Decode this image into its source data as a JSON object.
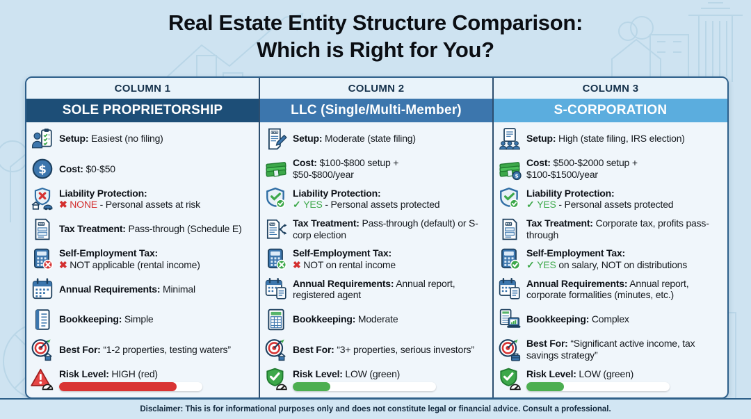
{
  "title": {
    "line1": "Real Estate Entity Structure Comparison:",
    "line2": "Which is Right for You?"
  },
  "footer": {
    "disclaimer": "Disclaimer: This is for informational purposes only and does not constitute legal or financial advice. Consult a professional."
  },
  "colors": {
    "page_background": "#cee3f1",
    "card_background": "#f0f6fb",
    "card_border": "#2e5f8a",
    "column1_header": "#1d4e77",
    "column2_header": "#3c76ad",
    "column3_header": "#5badde",
    "negative_red": "#d32f2f",
    "positive_green": "#3da84a",
    "risk_bar_red": "#d93434",
    "risk_bar_green": "#4cae50"
  },
  "table": {
    "columns": [
      {
        "header": "COLUMN 1",
        "title": "SOLE PROPRIETORSHIP",
        "header_color": "#1d4e77",
        "rows": [
          {
            "name": "setup",
            "icon": "person-checklist",
            "segments": [
              {
                "t": "Setup:",
                "b": 1
              },
              {
                "t": " Easiest (no filing)"
              }
            ]
          },
          {
            "name": "cost",
            "icon": "dollar-circle",
            "segments": [
              {
                "t": "Cost:",
                "b": 1
              },
              {
                "t": " $0-$50"
              }
            ]
          },
          {
            "name": "liability-protection",
            "icon": "shield-x-assets",
            "segments": [
              {
                "t": "Liability Protection:",
                "b": 1
              },
              {
                "br": 1
              },
              {
                "t": "✖ ",
                "b": 1,
                "c": "#d32f2f"
              },
              {
                "t": "NONE",
                "c": "#d32f2f"
              },
              {
                "t": " - Personal assets at risk"
              }
            ]
          },
          {
            "name": "tax-treatment",
            "icon": "tax-doc",
            "segments": [
              {
                "t": "Tax Treatment:",
                "b": 1
              },
              {
                "t": " Pass-through (Schedule E)"
              }
            ]
          },
          {
            "name": "self-employment-tax",
            "icon": "calculator-x-red",
            "segments": [
              {
                "t": "Self-Employment Tax:",
                "b": 1
              },
              {
                "br": 1
              },
              {
                "t": "✖ ",
                "b": 1,
                "c": "#d32f2f"
              },
              {
                "t": "NOT applicable (rental income)"
              }
            ]
          },
          {
            "name": "annual-requirements",
            "icon": "calendar",
            "segments": [
              {
                "t": "Annual Requirements:",
                "b": 1
              },
              {
                "t": " Minimal"
              }
            ]
          },
          {
            "name": "bookkeeping",
            "icon": "notebook",
            "segments": [
              {
                "t": "Bookkeeping:",
                "b": 1
              },
              {
                "t": " Simple"
              }
            ]
          },
          {
            "name": "best-for",
            "icon": "target-house",
            "segments": [
              {
                "t": "Best For:",
                "b": 1
              },
              {
                "t": " “1-2 properties, testing waters”"
              }
            ]
          },
          {
            "name": "risk-level",
            "icon": "warning-gauge",
            "segments": [
              {
                "t": "Risk Level:",
                "b": 1
              },
              {
                "t": " HIGH (red)"
              }
            ],
            "bar": {
              "color": "#d93434",
              "fill_pct": 82,
              "label": "HIGH"
            }
          }
        ]
      },
      {
        "header": "COLUMN 2",
        "title": "LLC (Single/Multi-Member)",
        "header_color": "#3c76ad",
        "rows": [
          {
            "name": "setup",
            "icon": "state-doc-pen",
            "segments": [
              {
                "t": "Setup:",
                "b": 1
              },
              {
                "t": " Moderate (state filing)"
              }
            ]
          },
          {
            "name": "cost",
            "icon": "money-stack",
            "segments": [
              {
                "t": "Cost:",
                "b": 1
              },
              {
                "t": " $100-$800 setup +"
              },
              {
                "br": 1
              },
              {
                "t": "$50-$800/year"
              }
            ]
          },
          {
            "name": "liability-protection",
            "icon": "shield-check",
            "segments": [
              {
                "t": "Liability Protection:",
                "b": 1
              },
              {
                "br": 1
              },
              {
                "t": "✓ ",
                "b": 1,
                "c": "#3da84a"
              },
              {
                "t": "YES",
                "c": "#3da84a"
              },
              {
                "t": " - Personal assets protected"
              }
            ]
          },
          {
            "name": "tax-treatment",
            "icon": "tax-doc-arrows",
            "segments": [
              {
                "t": "Tax Treatment:",
                "b": 1
              },
              {
                "t": " Pass-through (default) or S-corp election"
              }
            ]
          },
          {
            "name": "self-employment-tax",
            "icon": "calculator-x-green",
            "segments": [
              {
                "t": "Self-Employment Tax:",
                "b": 1
              },
              {
                "br": 1
              },
              {
                "t": "✖ ",
                "b": 1,
                "c": "#d32f2f"
              },
              {
                "t": "NOT on rental income"
              }
            ]
          },
          {
            "name": "annual-requirements",
            "icon": "calendar-notepad",
            "segments": [
              {
                "t": "Annual Requirements:",
                "b": 1
              },
              {
                "t": " Annual report, registered agent"
              }
            ]
          },
          {
            "name": "bookkeeping",
            "icon": "spreadsheet",
            "segments": [
              {
                "t": "Bookkeeping:",
                "b": 1
              },
              {
                "t": " Moderate"
              }
            ]
          },
          {
            "name": "best-for",
            "icon": "target-house",
            "segments": [
              {
                "t": "Best For:",
                "b": 1
              },
              {
                "t": " “3+ properties, serious investors”"
              }
            ]
          },
          {
            "name": "risk-level",
            "icon": "shield-gauge-green",
            "segments": [
              {
                "t": "Risk Level:",
                "b": 1
              },
              {
                "t": " LOW (green)"
              }
            ],
            "bar": {
              "color": "#4cae50",
              "fill_pct": 26,
              "label": "LOW"
            }
          }
        ]
      },
      {
        "header": "COLUMN 3",
        "title": "S-CORPORATION",
        "header_color": "#5badde",
        "rows": [
          {
            "name": "setup",
            "icon": "doc-people",
            "segments": [
              {
                "t": "Setup:",
                "b": 1
              },
              {
                "t": " High (state filing, IRS election)"
              }
            ]
          },
          {
            "name": "cost",
            "icon": "money-coin",
            "segments": [
              {
                "t": "Cost:",
                "b": 1
              },
              {
                "t": " $500-$2000 setup +"
              },
              {
                "br": 1
              },
              {
                "t": "$100-$1500/year"
              }
            ]
          },
          {
            "name": "liability-protection",
            "icon": "shield-check",
            "segments": [
              {
                "t": "Liability Protection:",
                "b": 1
              },
              {
                "br": 1
              },
              {
                "t": "✓ ",
                "b": 1,
                "c": "#3da84a"
              },
              {
                "t": "YES",
                "c": "#3da84a"
              },
              {
                "t": " - Personal assets protected"
              }
            ]
          },
          {
            "name": "tax-treatment",
            "icon": "tax-doc",
            "segments": [
              {
                "t": "Tax Treatment:",
                "b": 1
              },
              {
                "t": " Corporate tax, profits pass-through"
              }
            ]
          },
          {
            "name": "self-employment-tax",
            "icon": "calculator-check-green",
            "segments": [
              {
                "t": "Self-Employment Tax:",
                "b": 1
              },
              {
                "br": 1
              },
              {
                "t": "✓ ",
                "b": 1,
                "c": "#3da84a"
              },
              {
                "t": "YES",
                "c": "#3da84a"
              },
              {
                "t": " on salary, NOT on distributions"
              }
            ]
          },
          {
            "name": "annual-requirements",
            "icon": "calendar-doc",
            "segments": [
              {
                "t": "Annual Requirements:",
                "b": 1
              },
              {
                "t": " Annual report, corporate formalities (minutes, etc.)"
              }
            ]
          },
          {
            "name": "bookkeeping",
            "icon": "ledger-laptop",
            "segments": [
              {
                "t": "Bookkeeping:",
                "b": 1
              },
              {
                "t": " Complex"
              }
            ]
          },
          {
            "name": "best-for",
            "icon": "target-briefcase",
            "segments": [
              {
                "t": "Best For:",
                "b": 1
              },
              {
                "t": " “Significant active income, tax savings strategy”"
              }
            ]
          },
          {
            "name": "risk-level",
            "icon": "shield-gauge-green",
            "segments": [
              {
                "t": "Risk Level:",
                "b": 1
              },
              {
                "t": " LOW (green)"
              }
            ],
            "bar": {
              "color": "#4cae50",
              "fill_pct": 26,
              "label": "LOW"
            }
          }
        ]
      }
    ]
  }
}
